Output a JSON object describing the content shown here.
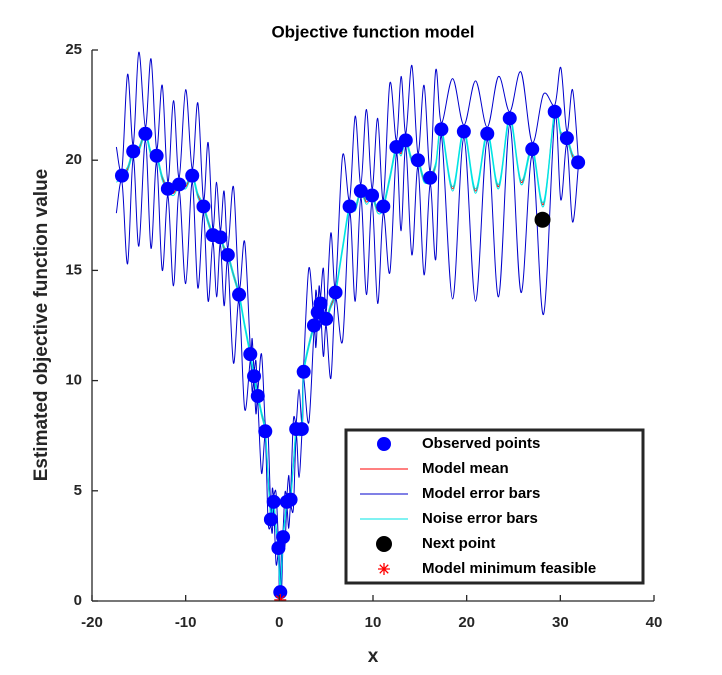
{
  "chart_data": {
    "type": "scatter",
    "title": "Objective function model",
    "xlabel": "x",
    "ylabel": "Estimated objective function value",
    "xlim": [
      -20,
      40
    ],
    "xticks": [
      -20,
      -10,
      0,
      10,
      20,
      30,
      40
    ],
    "ylim": [
      0,
      25
    ],
    "yticks": [
      0,
      5,
      10,
      15,
      20,
      25
    ],
    "grid": false,
    "legend": "southeast",
    "x": [
      -17.4,
      -16.8,
      -16.2,
      -15.6,
      -15.0,
      -14.3,
      -13.7,
      -13.1,
      -12.5,
      -11.9,
      -11.3,
      -10.7,
      -10.0,
      -9.3,
      -8.7,
      -8.1,
      -7.6,
      -7.1,
      -6.7,
      -6.3,
      -5.9,
      -5.5,
      -4.9,
      -4.3,
      -3.7,
      -3.1,
      -2.9,
      -2.7,
      -2.5,
      -2.3,
      -1.9,
      -1.5,
      -1.2,
      -0.9,
      -0.75,
      -0.6,
      -0.35,
      -0.1,
      0.0,
      0.1,
      0.25,
      0.4,
      0.6,
      0.8,
      1.0,
      1.2,
      1.5,
      1.8,
      2.1,
      2.4,
      2.5,
      2.6,
      3.15,
      3.7,
      3.9,
      4.1,
      4.25,
      4.4,
      4.7,
      5.0,
      5.5,
      6.0,
      6.75,
      7.5,
      8.1,
      8.7,
      9.3,
      9.9,
      10.5,
      11.1,
      11.8,
      12.5,
      13.0,
      13.5,
      14.15,
      14.8,
      15.45,
      16.1,
      16.7,
      17.3,
      18.5,
      19.7,
      20.95,
      22.2,
      23.4,
      24.6,
      25.8,
      27.0,
      28.2,
      29.4,
      30.05,
      30.7,
      31.3,
      31.9
    ],
    "series": [
      {
        "name": "Observed points",
        "type": "scatter",
        "marker": "dot",
        "color": "#0000ff",
        "x": [
          -16.8,
          -15.6,
          -14.3,
          -13.1,
          -11.9,
          -10.7,
          -9.3,
          -8.1,
          -7.1,
          -6.3,
          -5.5,
          -4.3,
          -3.1,
          -2.7,
          -2.3,
          -1.5,
          -0.9,
          -0.6,
          -0.1,
          0.1,
          0.4,
          0.8,
          1.2,
          1.8,
          2.4,
          2.6,
          3.7,
          4.1,
          4.4,
          5.0,
          6.0,
          7.5,
          8.7,
          9.9,
          11.1,
          12.5,
          13.5,
          14.8,
          16.1,
          17.3,
          19.7,
          22.2,
          24.6,
          27.0,
          29.4,
          30.7,
          31.9
        ],
        "values": [
          19.3,
          20.4,
          21.2,
          20.2,
          18.7,
          18.9,
          19.3,
          17.9,
          16.6,
          16.5,
          15.7,
          13.9,
          11.2,
          10.2,
          9.3,
          7.7,
          3.7,
          4.5,
          2.4,
          0.4,
          2.9,
          4.5,
          4.6,
          7.8,
          7.8,
          10.4,
          12.5,
          13.1,
          13.5,
          12.8,
          14.0,
          17.9,
          18.6,
          18.4,
          17.9,
          20.6,
          20.9,
          20.0,
          19.2,
          21.4,
          21.3,
          21.2,
          21.9,
          20.5,
          22.2,
          21.0,
          19.9
        ]
      },
      {
        "name": "Model mean",
        "type": "line",
        "color": "#ff0000",
        "values": [
          19.1,
          19.3,
          19.6,
          20.4,
          20.5,
          21.2,
          20.3,
          20.2,
          19.2,
          18.7,
          18.5,
          18.9,
          18.8,
          19.3,
          18.4,
          17.9,
          17.2,
          16.6,
          16.4,
          16.5,
          16.0,
          15.7,
          14.8,
          13.9,
          12.5,
          11.2,
          10.7,
          10.2,
          9.7,
          9.3,
          8.5,
          7.7,
          5.6,
          3.7,
          4.1,
          4.5,
          3.3,
          2.4,
          1.2,
          0.4,
          1.6,
          2.9,
          3.7,
          4.5,
          4.5,
          4.6,
          6.2,
          7.8,
          7.6,
          7.8,
          9.1,
          10.4,
          11.6,
          12.5,
          12.8,
          13.1,
          13.3,
          13.5,
          13.1,
          12.8,
          13.4,
          14.0,
          16.0,
          17.9,
          17.8,
          18.6,
          18.1,
          18.4,
          17.7,
          17.9,
          19.2,
          20.6,
          20.3,
          20.9,
          20.0,
          20.0,
          19.1,
          19.2,
          19.8,
          21.4,
          18.7,
          21.3,
          18.6,
          21.2,
          18.8,
          21.9,
          19.0,
          20.5,
          18.0,
          22.2,
          21.2,
          21.0,
          20.2,
          19.9
        ]
      },
      {
        "name": "Model error bars",
        "type": "errorband",
        "color": "#0000cc",
        "values": [
          1.5,
          0.3,
          4.3,
          0.3,
          4.4,
          0.3,
          4.3,
          0.3,
          4.2,
          0.3,
          4.2,
          0.3,
          4.4,
          0.3,
          4.2,
          0.3,
          3.6,
          0.3,
          2.6,
          0.3,
          2.6,
          0.3,
          4.0,
          0.3,
          3.8,
          0.3,
          1.2,
          0.3,
          1.2,
          0.3,
          2.7,
          0.3,
          2.0,
          0.3,
          1.0,
          0.3,
          1.6,
          0.3,
          0.8,
          0.3,
          1.0,
          0.3,
          1.2,
          0.3,
          1.2,
          0.3,
          2.0,
          0.3,
          2.0,
          0.3,
          0.8,
          0.3,
          3.5,
          0.3,
          1.3,
          0.3,
          1.0,
          0.3,
          2.0,
          0.3,
          3.3,
          0.3,
          4.2,
          0.3,
          4.2,
          0.3,
          4.2,
          0.3,
          4.2,
          0.3,
          4.3,
          0.3,
          3.5,
          0.3,
          4.3,
          0.3,
          4.3,
          0.3,
          4.3,
          0.3,
          5.0,
          0.3,
          5.0,
          0.3,
          5.0,
          0.3,
          5.0,
          0.3,
          5.0,
          0.3,
          3.0,
          0.3,
          3.0,
          0.3
        ]
      },
      {
        "name": "Noise error bars",
        "type": "errorband",
        "color": "#00e5e5",
        "values": [
          0.1,
          0.1,
          0.1,
          0.1,
          0.1,
          0.1,
          0.1,
          0.1,
          0.1,
          0.1,
          0.1,
          0.1,
          0.1,
          0.1,
          0.1,
          0.1,
          0.1,
          0.1,
          0.1,
          0.1,
          0.1,
          0.1,
          0.1,
          0.1,
          0.1,
          0.1,
          0.1,
          0.1,
          0.1,
          0.1,
          0.1,
          0.1,
          0.1,
          0.1,
          0.1,
          0.1,
          0.1,
          0.1,
          0.1,
          0.1,
          0.1,
          0.1,
          0.1,
          0.1,
          0.1,
          0.1,
          0.1,
          0.1,
          0.1,
          0.1,
          0.1,
          0.1,
          0.1,
          0.1,
          0.1,
          0.1,
          0.1,
          0.1,
          0.1,
          0.1,
          0.1,
          0.1,
          0.1,
          0.1,
          0.1,
          0.1,
          0.1,
          0.1,
          0.1,
          0.1,
          0.1,
          0.1,
          0.1,
          0.1,
          0.1,
          0.1,
          0.1,
          0.1,
          0.1,
          0.1,
          0.1,
          0.1,
          0.1,
          0.1,
          0.1,
          0.1,
          0.1,
          0.1,
          0.1,
          0.1,
          0.1,
          0.1,
          0.1,
          0.1
        ]
      },
      {
        "name": "Next point",
        "type": "scatter",
        "marker": "bigdot",
        "color": "#000000",
        "x": [
          28.1
        ],
        "values": [
          17.3
        ]
      },
      {
        "name": "Model minimum feasible",
        "type": "scatter",
        "marker": "star",
        "color": "#ff0000",
        "x": [
          0.1
        ],
        "values": [
          0.05
        ]
      }
    ]
  }
}
